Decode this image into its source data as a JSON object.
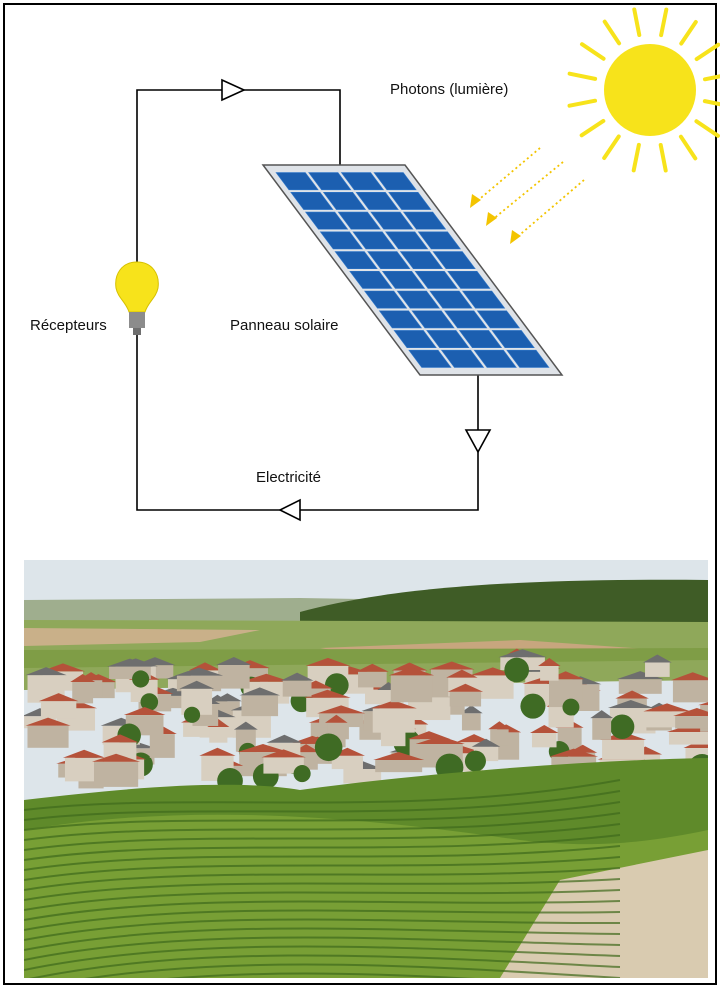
{
  "labels": {
    "photons": "Photons (lumière)",
    "receivers": "Récepteurs",
    "panel": "Panneau solaire",
    "electricity": "Electricité"
  }
}
